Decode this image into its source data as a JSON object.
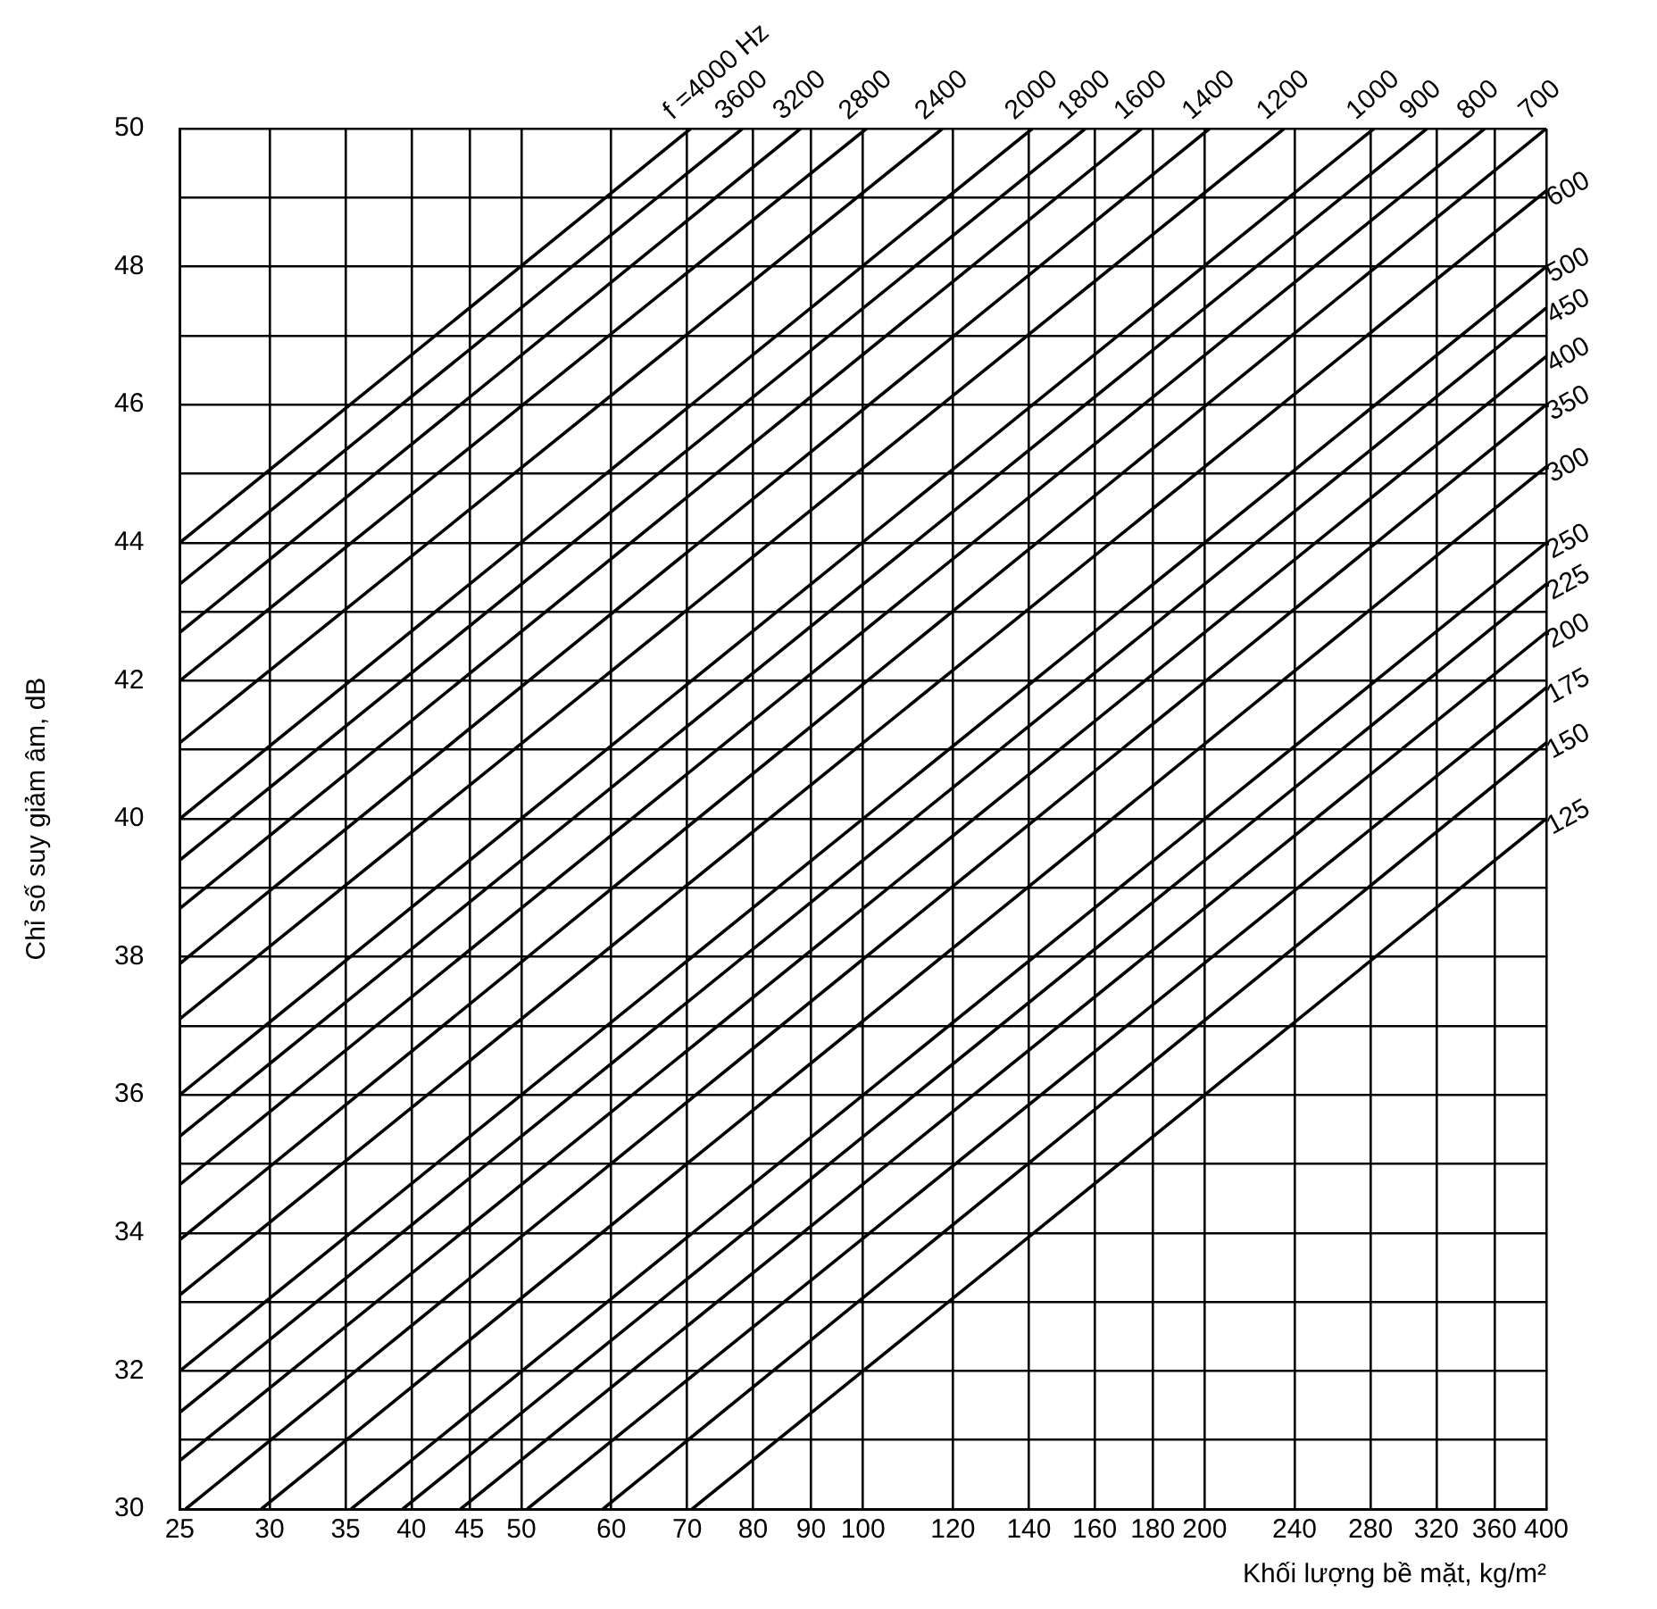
{
  "chart_data": {
    "type": "line",
    "xlabel": "Khối lượng bề mặt, kg/m²",
    "ylabel": "Chỉ số suy giảm âm, dB",
    "log": "x",
    "xlim": [
      25,
      400
    ],
    "ylim": [
      30,
      50
    ],
    "xticks": [
      25,
      30,
      35,
      40,
      45,
      50,
      60,
      70,
      80,
      90,
      100,
      120,
      140,
      160,
      180,
      200,
      240,
      280,
      320,
      360,
      400
    ],
    "yticks": [
      30,
      {
        "value": 31,
        "label": null
      },
      32,
      {
        "value": 33,
        "label": null
      },
      34,
      {
        "value": 35,
        "label": null
      },
      36,
      {
        "value": 37,
        "label": null
      },
      38,
      {
        "value": 39,
        "label": null
      },
      40,
      {
        "value": 41,
        "label": null
      },
      42,
      {
        "value": 43,
        "label": null
      },
      44,
      {
        "value": 45,
        "label": null
      },
      46,
      {
        "value": 47,
        "label": null
      },
      48,
      {
        "value": 49,
        "label": null
      },
      50
    ],
    "grid": true,
    "legend": false,
    "marker": "none",
    "line_style": "solid",
    "series": [
      {
        "name": "f =4000 Hz",
        "color": "#000000",
        "x": [
          25,
          70.5
        ],
        "values": [
          44.0,
          50
        ]
      },
      {
        "name": "3600",
        "color": "#000000",
        "x": [
          25,
          78.3
        ],
        "values": [
          43.4,
          50
        ]
      },
      {
        "name": "3200",
        "color": "#000000",
        "x": [
          25,
          88.1
        ],
        "values": [
          42.7,
          50
        ]
      },
      {
        "name": "2800",
        "color": "#000000",
        "x": [
          25,
          100.7
        ],
        "values": [
          42.0,
          50
        ]
      },
      {
        "name": "2400",
        "color": "#000000",
        "x": [
          25,
          117.5
        ],
        "values": [
          41.1,
          50
        ]
      },
      {
        "name": "2000",
        "color": "#000000",
        "x": [
          25,
          141
        ],
        "values": [
          40.0,
          50
        ]
      },
      {
        "name": "1800",
        "color": "#000000",
        "x": [
          25,
          157
        ],
        "values": [
          39.4,
          50
        ]
      },
      {
        "name": "1600",
        "color": "#000000",
        "x": [
          25,
          176
        ],
        "values": [
          38.7,
          50
        ]
      },
      {
        "name": "1400",
        "color": "#000000",
        "x": [
          25,
          202
        ],
        "values": [
          37.9,
          50
        ]
      },
      {
        "name": "1200",
        "color": "#000000",
        "x": [
          25,
          235
        ],
        "values": [
          37.1,
          50
        ]
      },
      {
        "name": "1000",
        "color": "#000000",
        "x": [
          25,
          282
        ],
        "values": [
          36.0,
          50
        ]
      },
      {
        "name": "900",
        "color": "#000000",
        "x": [
          25,
          314
        ],
        "values": [
          35.4,
          50
        ]
      },
      {
        "name": "800",
        "color": "#000000",
        "x": [
          25,
          353
        ],
        "values": [
          34.7,
          50
        ]
      },
      {
        "name": "700",
        "color": "#000000",
        "x": [
          25,
          400
        ],
        "values": [
          33.9,
          50.0
        ]
      },
      {
        "name": "600",
        "color": "#000000",
        "x": [
          25,
          400
        ],
        "values": [
          33.1,
          49.1
        ]
      },
      {
        "name": "500",
        "color": "#000000",
        "x": [
          25,
          400
        ],
        "values": [
          32.0,
          48.0
        ]
      },
      {
        "name": "450",
        "color": "#000000",
        "x": [
          25,
          400
        ],
        "values": [
          31.4,
          47.4
        ]
      },
      {
        "name": "400",
        "color": "#000000",
        "x": [
          25,
          400
        ],
        "values": [
          30.7,
          46.7
        ]
      },
      {
        "name": "350",
        "color": "#000000",
        "x": [
          25.3,
          400
        ],
        "values": [
          30,
          46.0
        ]
      },
      {
        "name": "300",
        "color": "#000000",
        "x": [
          29.5,
          400
        ],
        "values": [
          30,
          45.1
        ]
      },
      {
        "name": "250",
        "color": "#000000",
        "x": [
          35.4,
          400
        ],
        "values": [
          30,
          44.0
        ]
      },
      {
        "name": "225",
        "color": "#000000",
        "x": [
          39.3,
          400
        ],
        "values": [
          30,
          43.4
        ]
      },
      {
        "name": "200",
        "color": "#000000",
        "x": [
          44.2,
          400
        ],
        "values": [
          30,
          42.7
        ]
      },
      {
        "name": "175",
        "color": "#000000",
        "x": [
          50.6,
          400
        ],
        "values": [
          30,
          41.9
        ]
      },
      {
        "name": "150",
        "color": "#000000",
        "x": [
          59,
          400
        ],
        "values": [
          30,
          41.1
        ]
      },
      {
        "name": "125",
        "color": "#000000",
        "x": [
          70.7,
          400
        ],
        "values": [
          30,
          40.0
        ]
      }
    ]
  }
}
